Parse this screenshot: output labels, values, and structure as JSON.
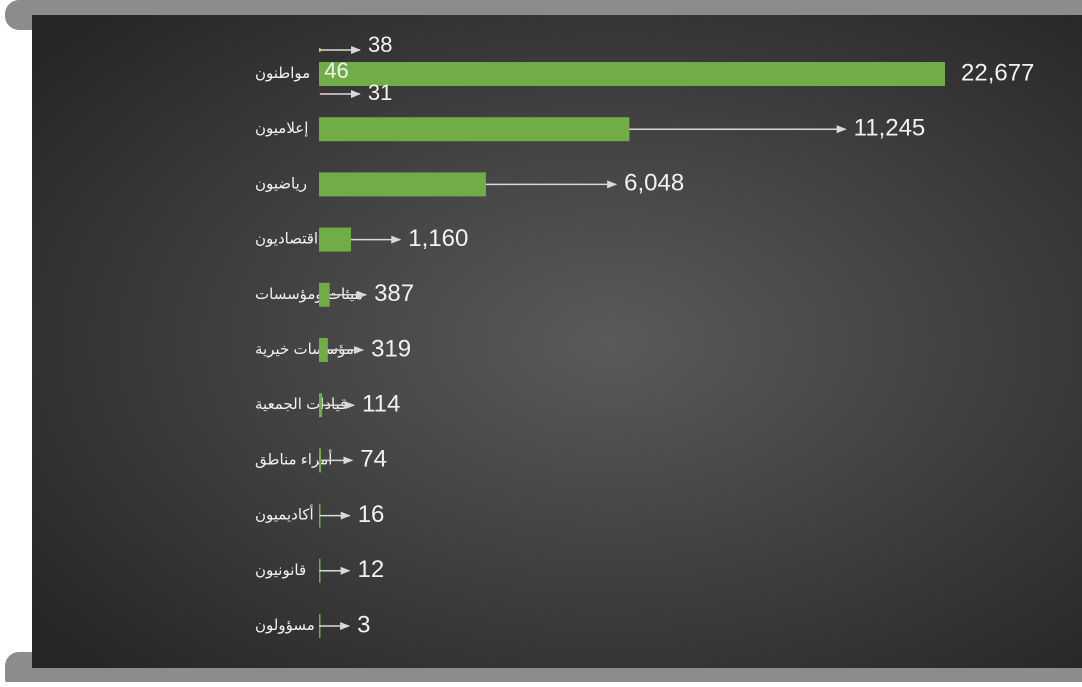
{
  "chart_data": {
    "type": "bar",
    "orientation": "horizontal",
    "categories": [
      "مواطنون",
      "إعلاميون",
      "رياضيون",
      "اقتصاديون",
      "هيئات ومؤسسات",
      "مؤسسات خيرية",
      "قيادات الجمعية",
      "أمراء مناطق",
      "أكاديميون",
      "قانونيون",
      "مسؤولون"
    ],
    "series": [
      {
        "color": "#70ad47",
        "values": [
          22677,
          11245,
          6048,
          1160,
          387,
          319,
          114,
          74,
          16,
          12,
          3
        ],
        "value_labels": [
          "22,677",
          "11,245",
          "6,048",
          "1,160",
          "387",
          "319",
          "114",
          "74",
          "16",
          "12",
          "3"
        ]
      },
      {
        "color": "#ffc000",
        "values": [
          38,
          null,
          null,
          null,
          null,
          null,
          null,
          null,
          null,
          null,
          null
        ]
      },
      {
        "color": "#a5a5a5",
        "values": [
          46,
          null,
          null,
          null,
          null,
          null,
          null,
          null,
          null,
          null,
          null
        ]
      },
      {
        "color": "#c00000",
        "values": [
          31,
          null,
          null,
          null,
          null,
          null,
          null,
          null,
          null,
          null,
          null
        ]
      }
    ]
  }
}
